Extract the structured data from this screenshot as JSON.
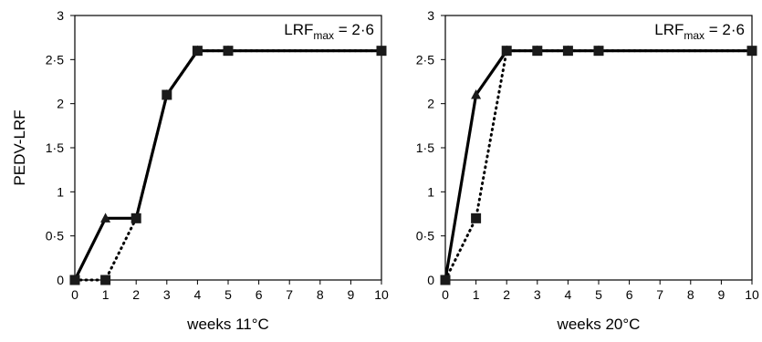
{
  "chart_data": [
    {
      "type": "line",
      "xlabel": "weeks 11°C",
      "ylabel": "PEDV-LRF",
      "annotation": {
        "main": "LRF",
        "sub": "max",
        "tail": " = 2·6"
      },
      "x_ticks": [
        "0",
        "1",
        "2",
        "3",
        "4",
        "5",
        "6",
        "7",
        "8",
        "9",
        "10"
      ],
      "y_ticks": [
        "0",
        "0·5",
        "1",
        "1·5",
        "2",
        "2·5",
        "3"
      ],
      "xlim": [
        0,
        10
      ],
      "ylim": [
        0,
        3
      ],
      "grid": false,
      "series": [
        {
          "style": "solid",
          "marker": "triangle",
          "x": [
            0,
            1,
            2,
            3,
            4,
            5,
            10
          ],
          "y": [
            0,
            0.7,
            0.7,
            2.1,
            2.6,
            2.6,
            2.6
          ]
        },
        {
          "style": "dotted",
          "marker": "square",
          "x": [
            0,
            1,
            2,
            3,
            4,
            5,
            10
          ],
          "y": [
            0,
            0,
            0.7,
            2.1,
            2.6,
            2.6,
            2.6
          ]
        }
      ]
    },
    {
      "type": "line",
      "xlabel": "weeks 20°C",
      "ylabel": "",
      "annotation": {
        "main": "LRF",
        "sub": "max",
        "tail": " = 2·6"
      },
      "x_ticks": [
        "0",
        "1",
        "2",
        "3",
        "4",
        "5",
        "6",
        "7",
        "8",
        "9",
        "10"
      ],
      "y_ticks": [
        "0",
        "0·5",
        "1",
        "1·5",
        "2",
        "2·5",
        "3"
      ],
      "xlim": [
        0,
        10
      ],
      "ylim": [
        0,
        3
      ],
      "grid": false,
      "series": [
        {
          "style": "solid",
          "marker": "triangle",
          "x": [
            0,
            1,
            2,
            3,
            4,
            5,
            10
          ],
          "y": [
            0,
            2.1,
            2.6,
            2.6,
            2.6,
            2.6,
            2.6
          ]
        },
        {
          "style": "dotted",
          "marker": "square",
          "x": [
            0,
            1,
            2,
            3,
            4,
            5,
            10
          ],
          "y": [
            0,
            0.7,
            2.6,
            2.6,
            2.6,
            2.6,
            2.6
          ]
        }
      ]
    }
  ]
}
